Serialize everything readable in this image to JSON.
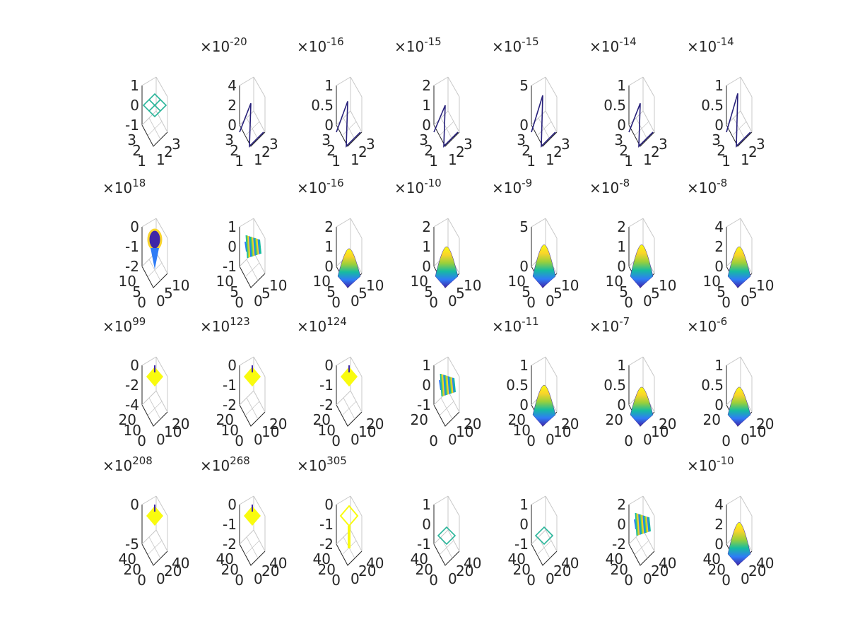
{
  "chart_data": {
    "type": "surface-grid",
    "rows": 4,
    "cols": 7,
    "colors": {
      "text": "#262626",
      "axis": "#262626",
      "grid": "#c8c8c8",
      "colormap": [
        "#3e26a8",
        "#2f7cf6",
        "#16bba1",
        "#9bd03a",
        "#f9d42b",
        "#f9fb0e"
      ]
    },
    "panels": [
      {
        "row": 1,
        "col": 1,
        "exponent": "",
        "zticks": [
          "1",
          "0",
          "-1"
        ],
        "xticks": [
          "3",
          "2",
          "1"
        ],
        "yticks": [
          "1",
          "2",
          "3"
        ],
        "kind": "diamond",
        "color": "#2ab59a"
      },
      {
        "row": 1,
        "col": 2,
        "exponent": "-20",
        "zticks": [
          "4",
          "2",
          "0"
        ],
        "xticks": [
          "3",
          "2",
          "1"
        ],
        "yticks": [
          "1",
          "2",
          "3"
        ],
        "kind": "spike",
        "color": "#27207a",
        "peak": 0.55
      },
      {
        "row": 1,
        "col": 3,
        "exponent": "-16",
        "zticks": [
          "1",
          "0.5",
          "0"
        ],
        "xticks": [
          "3",
          "2",
          "1"
        ],
        "yticks": [
          "1",
          "2",
          "3"
        ],
        "kind": "spike",
        "color": "#27207a",
        "peak": 0.6
      },
      {
        "row": 1,
        "col": 4,
        "exponent": "-15",
        "zticks": [
          "2",
          "1",
          "0"
        ],
        "xticks": [
          "3",
          "2",
          "1"
        ],
        "yticks": [
          "1",
          "2",
          "3"
        ],
        "kind": "spike",
        "color": "#27207a",
        "peak": 0.5
      },
      {
        "row": 1,
        "col": 5,
        "exponent": "-15",
        "zticks": [
          "5",
          "0"
        ],
        "xticks": [
          "3",
          "2",
          "1"
        ],
        "yticks": [
          "1",
          "2",
          "3"
        ],
        "kind": "spike",
        "color": "#27207a",
        "peak": 0.75
      },
      {
        "row": 1,
        "col": 6,
        "exponent": "-14",
        "zticks": [
          "1",
          "0.5",
          "0"
        ],
        "xticks": [
          "3",
          "2",
          "1"
        ],
        "yticks": [
          "1",
          "2",
          "3"
        ],
        "kind": "spike",
        "color": "#27207a",
        "peak": 0.55
      },
      {
        "row": 1,
        "col": 7,
        "exponent": "-14",
        "zticks": [
          "1",
          "0.5",
          "0"
        ],
        "xticks": [
          "3",
          "2",
          "1"
        ],
        "yticks": [
          "1",
          "2",
          "3"
        ],
        "kind": "spike",
        "color": "#27207a",
        "peak": 0.8
      },
      {
        "row": 2,
        "col": 1,
        "exponent": "18",
        "zticks": [
          "0",
          "-1",
          "-2"
        ],
        "xticks": [
          "10",
          "5",
          "0"
        ],
        "yticks": [
          "0",
          "5",
          "10"
        ],
        "kind": "blob-down",
        "color": "#3b6cd8"
      },
      {
        "row": 2,
        "col": 2,
        "exponent": "",
        "zticks": [
          "1",
          "0",
          "-1"
        ],
        "xticks": [
          "10",
          "5",
          "0"
        ],
        "yticks": [
          "0",
          "5",
          "10"
        ],
        "kind": "noise",
        "color": "#3fa7c9"
      },
      {
        "row": 2,
        "col": 3,
        "exponent": "-16",
        "zticks": [
          "2",
          "1",
          "0"
        ],
        "xticks": [
          "10",
          "5",
          "0"
        ],
        "yticks": [
          "0",
          "5",
          "10"
        ],
        "kind": "hill",
        "color": "#2f7cf6",
        "peak": 0.45
      },
      {
        "row": 2,
        "col": 4,
        "exponent": "-10",
        "zticks": [
          "2",
          "1",
          "0"
        ],
        "xticks": [
          "10",
          "5",
          "0"
        ],
        "yticks": [
          "0",
          "5",
          "10"
        ],
        "kind": "hill",
        "color": "#2f7cf6",
        "peak": 0.5
      },
      {
        "row": 2,
        "col": 5,
        "exponent": "-9",
        "zticks": [
          "5",
          "0"
        ],
        "xticks": [
          "10",
          "5",
          "0"
        ],
        "yticks": [
          "0",
          "5",
          "10"
        ],
        "kind": "hill",
        "color": "#2f7cf6",
        "peak": 0.55
      },
      {
        "row": 2,
        "col": 6,
        "exponent": "-8",
        "zticks": [
          "2",
          "1",
          "0"
        ],
        "xticks": [
          "10",
          "5",
          "0"
        ],
        "yticks": [
          "0",
          "5",
          "10"
        ],
        "kind": "hill",
        "color": "#2f7cf6",
        "peak": 0.55
      },
      {
        "row": 2,
        "col": 7,
        "exponent": "-8",
        "zticks": [
          "4",
          "2",
          "0"
        ],
        "xticks": [
          "10",
          "5",
          "0"
        ],
        "yticks": [
          "0",
          "5",
          "10"
        ],
        "kind": "hill",
        "color": "#2f7cf6",
        "peak": 0.5
      },
      {
        "row": 3,
        "col": 1,
        "exponent": "99",
        "zticks": [
          "0",
          "-2",
          "-4"
        ],
        "xticks": [
          "20",
          "10",
          "0"
        ],
        "yticks": [
          "0",
          "10",
          "20"
        ],
        "kind": "yellow-top",
        "color": "#f9fb0e"
      },
      {
        "row": 3,
        "col": 2,
        "exponent": "123",
        "zticks": [
          "0",
          "-1",
          "-2"
        ],
        "xticks": [
          "20",
          "10",
          "0"
        ],
        "yticks": [
          "0",
          "10",
          "20"
        ],
        "kind": "yellow-top",
        "color": "#f9fb0e"
      },
      {
        "row": 3,
        "col": 3,
        "exponent": "124",
        "zticks": [
          "0",
          "-1",
          "-2"
        ],
        "xticks": [
          "20",
          "10",
          "0"
        ],
        "yticks": [
          "0",
          "10",
          "20"
        ],
        "kind": "yellow-top",
        "color": "#f9fb0e"
      },
      {
        "row": 3,
        "col": 4,
        "exponent": "",
        "zticks": [
          "1",
          "0",
          "-1"
        ],
        "xticks": [
          "20",
          "0"
        ],
        "yticks": [
          "0",
          "10",
          "20"
        ],
        "kind": "noise",
        "color": "#6fc07a"
      },
      {
        "row": 3,
        "col": 5,
        "exponent": "-11",
        "zticks": [
          "1",
          "0.5",
          "0"
        ],
        "xticks": [
          "20",
          "10",
          "0"
        ],
        "yticks": [
          "0",
          "10",
          "20"
        ],
        "kind": "hill",
        "color": "#2f7cf6",
        "peak": 0.5
      },
      {
        "row": 3,
        "col": 6,
        "exponent": "-7",
        "zticks": [
          "1",
          "0.5",
          "0"
        ],
        "xticks": [
          "20",
          "0"
        ],
        "yticks": [
          "0",
          "10",
          "20"
        ],
        "kind": "hill",
        "color": "#2f7cf6",
        "peak": 0.45
      },
      {
        "row": 3,
        "col": 7,
        "exponent": "-6",
        "zticks": [
          "1",
          "0.5",
          "0"
        ],
        "xticks": [
          "20",
          "0"
        ],
        "yticks": [
          "0",
          "10",
          "20"
        ],
        "kind": "hill",
        "color": "#2f7cf6",
        "peak": 0.45
      },
      {
        "row": 4,
        "col": 1,
        "exponent": "208",
        "zticks": [
          "0",
          "-5"
        ],
        "xticks": [
          "40",
          "20",
          "0"
        ],
        "yticks": [
          "0",
          "20",
          "40"
        ],
        "kind": "yellow-top",
        "color": "#f9fb0e"
      },
      {
        "row": 4,
        "col": 2,
        "exponent": "268",
        "zticks": [
          "0",
          "-1",
          "-2"
        ],
        "xticks": [
          "40",
          "20",
          "0"
        ],
        "yticks": [
          "0",
          "20",
          "40"
        ],
        "kind": "yellow-top",
        "color": "#f9fb0e"
      },
      {
        "row": 4,
        "col": 3,
        "exponent": "305",
        "zticks": [
          "0",
          "-1",
          "-2"
        ],
        "xticks": [
          "40",
          "20",
          "0"
        ],
        "yticks": [
          "0",
          "20",
          "40"
        ],
        "kind": "yellow-outline",
        "color": "#f9fb0e"
      },
      {
        "row": 4,
        "col": 4,
        "exponent": "",
        "zticks": [
          "1",
          "0",
          "-1"
        ],
        "xticks": [
          "40",
          "20",
          "0"
        ],
        "yticks": [
          "0",
          "20",
          "40"
        ],
        "kind": "diamond-small",
        "color": "#2ab59a"
      },
      {
        "row": 4,
        "col": 5,
        "exponent": "",
        "zticks": [
          "1",
          "0",
          "-1"
        ],
        "xticks": [
          "40",
          "20",
          "0"
        ],
        "yticks": [
          "0",
          "20",
          "40"
        ],
        "kind": "diamond-small",
        "color": "#2ab59a"
      },
      {
        "row": 4,
        "col": 6,
        "exponent": "",
        "zticks": [
          "2",
          "0",
          "-2"
        ],
        "xticks": [
          "40",
          "20",
          "0"
        ],
        "yticks": [
          "0",
          "20",
          "40"
        ],
        "kind": "noise",
        "color": "#6fc07a"
      },
      {
        "row": 4,
        "col": 7,
        "exponent": "-10",
        "zticks": [
          "4",
          "2",
          "0"
        ],
        "xticks": [
          "40",
          "20",
          "0"
        ],
        "yticks": [
          "0",
          "20",
          "40"
        ],
        "kind": "hill",
        "color": "#2f7cf6",
        "peak": 0.55
      }
    ]
  }
}
